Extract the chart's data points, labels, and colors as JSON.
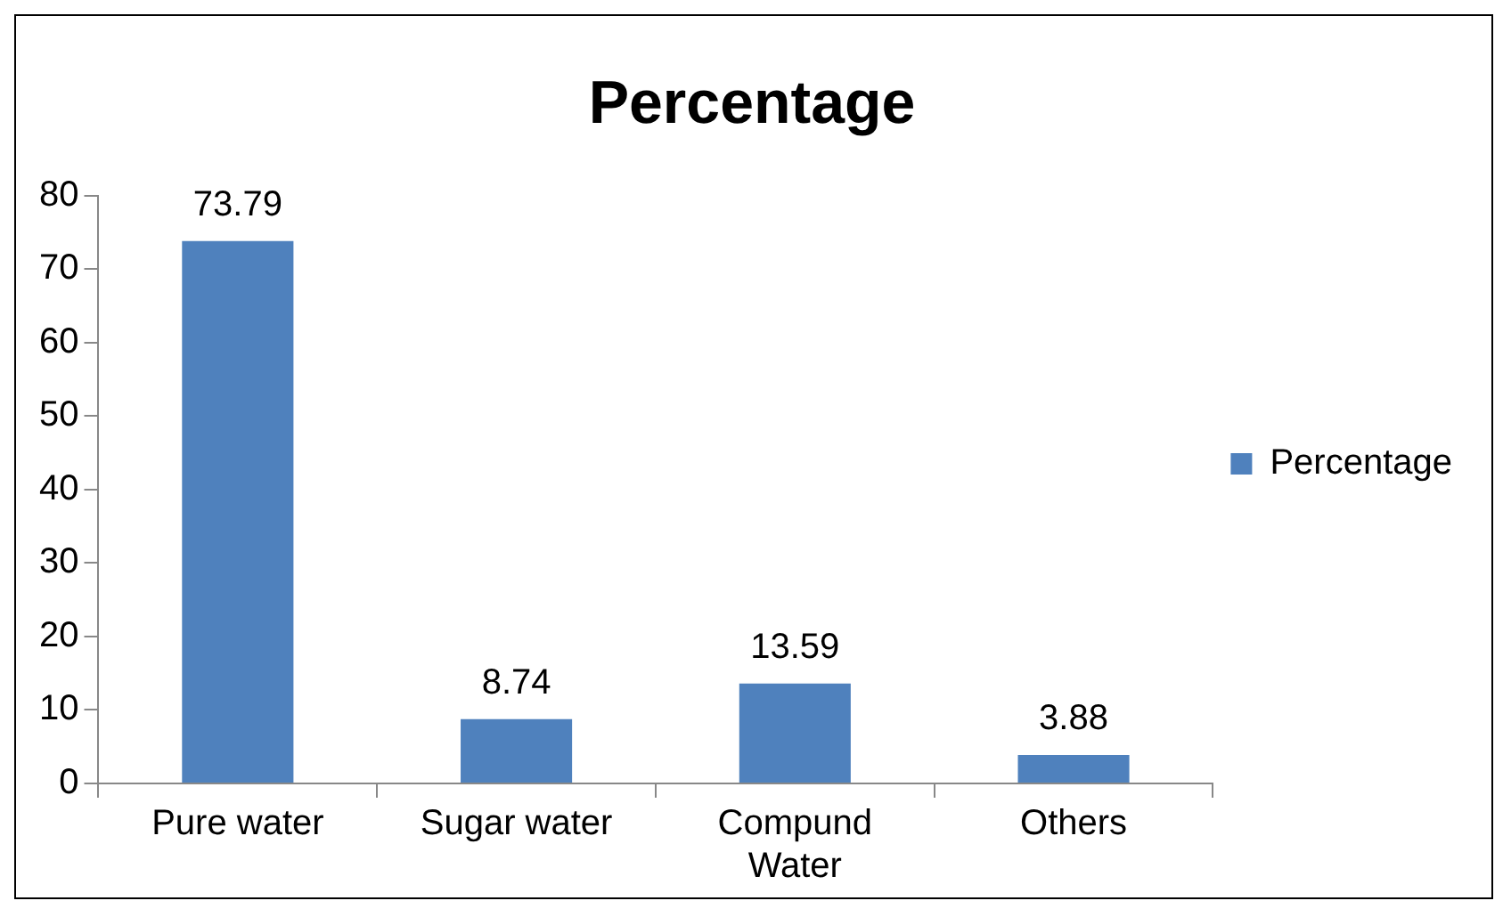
{
  "chart_data": {
    "type": "bar",
    "title": "Percentage",
    "categories": [
      "Pure water",
      "Sugar water",
      "Compund Water",
      "Others"
    ],
    "series": [
      {
        "name": "Percentage",
        "color": "#4f81bd",
        "values": [
          73.79,
          8.74,
          13.59,
          3.88
        ]
      }
    ],
    "ylim": [
      0,
      80
    ],
    "yticks": [
      0,
      10,
      20,
      30,
      40,
      50,
      60,
      70,
      80
    ],
    "grid": false,
    "legend": "right",
    "data_labels": true
  }
}
